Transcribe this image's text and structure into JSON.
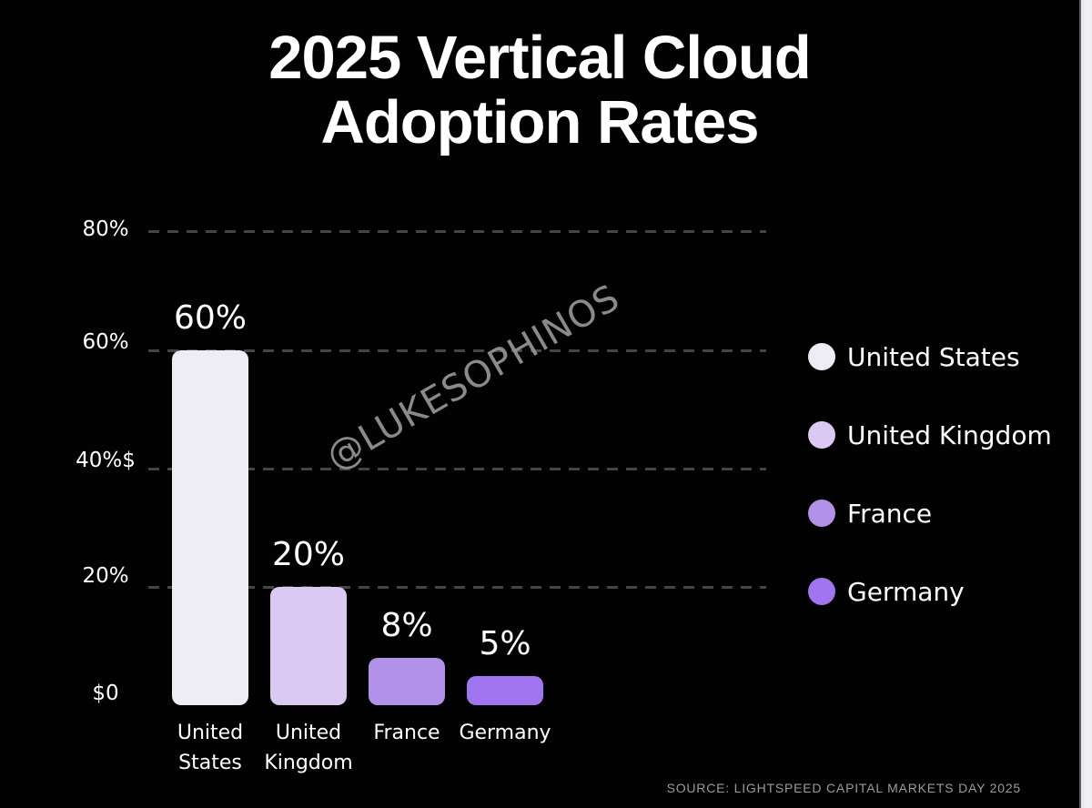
{
  "title": {
    "line1": "2025 Vertical Cloud",
    "line2": "Adoption Rates"
  },
  "watermark": "@LUKESOPHINOS",
  "source": "SOURCE: LIGHTSPEED CAPITAL MARKETS DAY 2025",
  "colors": {
    "background": "#020202",
    "grid": "#454545",
    "text": "#ffffff",
    "muted_text": "#9b9b9b",
    "edge_strip": "#f2f3f6"
  },
  "legend": {
    "items": [
      {
        "label": "United States",
        "color": "#efedf4"
      },
      {
        "label": "United Kingdom",
        "color": "#dbc9f3"
      },
      {
        "label": "France",
        "color": "#b292e9"
      },
      {
        "label": "Germany",
        "color": "#a175f0"
      }
    ]
  },
  "chart_data": {
    "type": "bar",
    "title": "2025 Vertical Cloud Adoption Rates",
    "categories": [
      "United States",
      "United Kingdom",
      "France",
      "Germany"
    ],
    "values": [
      60,
      20,
      8,
      5
    ],
    "value_labels": [
      "60%",
      "20%",
      "8%",
      "5%"
    ],
    "bar_colors": [
      "#efedf4",
      "#dbc9f3",
      "#b292e9",
      "#a175f0"
    ],
    "unit": "percent",
    "ylim": [
      0,
      80
    ],
    "ytick_values": [
      80,
      60,
      40,
      20,
      0
    ],
    "ytick_labels": [
      "80%",
      "60%",
      "40%$",
      "20%",
      "$0"
    ],
    "x_labels_two_line": [
      [
        "United",
        "States"
      ],
      [
        "United",
        "Kingdom"
      ],
      [
        "France",
        ""
      ],
      [
        "Germany",
        ""
      ]
    ],
    "grid": "horizontal dashed",
    "legend_position": "right",
    "pixels_per_unit": 6.5
  }
}
